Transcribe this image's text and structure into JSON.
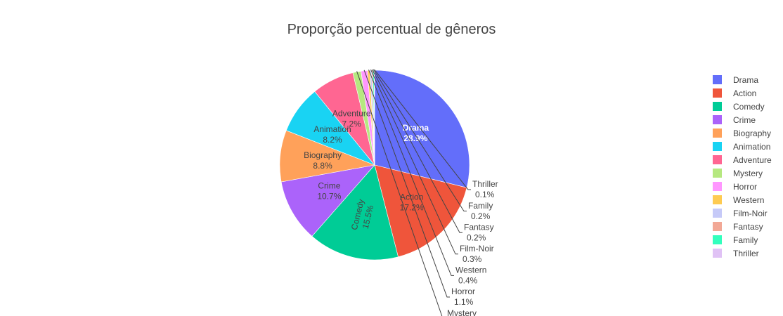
{
  "chart_data": {
    "type": "pie",
    "title": "Proporção percentual de gêneros",
    "slices": [
      {
        "label": "Drama",
        "value": 28.9,
        "text": "28.9%",
        "color": "#636efa"
      },
      {
        "label": "Action",
        "value": 17.2,
        "text": "17.2%",
        "color": "#ef553b"
      },
      {
        "label": "Comedy",
        "value": 15.5,
        "text": "15.5%",
        "color": "#00cc96"
      },
      {
        "label": "Crime",
        "value": 10.7,
        "text": "10.7%",
        "color": "#ab63fa"
      },
      {
        "label": "Biography",
        "value": 8.8,
        "text": "8.8%",
        "color": "#ffa15a"
      },
      {
        "label": "Animation",
        "value": 8.2,
        "text": "8.2%",
        "color": "#19d3f3"
      },
      {
        "label": "Adventure",
        "value": 7.2,
        "text": "7.2%",
        "color": "#ff6692"
      },
      {
        "label": "Mystery",
        "value": 1.4,
        "text": "",
        "color": "#b6e880"
      },
      {
        "label": "Horror",
        "value": 1.1,
        "text": "1.1%",
        "color": "#ff97ff"
      },
      {
        "label": "Western",
        "value": 0.4,
        "text": "0.4%",
        "color": "#fecb52"
      },
      {
        "label": "Film-Noir",
        "value": 0.3,
        "text": "0.3%",
        "color": "#c6caf8"
      },
      {
        "label": "Fantasy",
        "value": 0.2,
        "text": "0.2%",
        "color": "#f2a896"
      },
      {
        "label": "Family",
        "value": 0.2,
        "text": "0.2%",
        "color": "#33ffbd"
      },
      {
        "label": "Thriller",
        "value": 0.1,
        "text": "0.1%",
        "color": "#e0c2f5"
      }
    ],
    "sort": "descending",
    "direction": "clockwise",
    "legend_position": "right"
  }
}
